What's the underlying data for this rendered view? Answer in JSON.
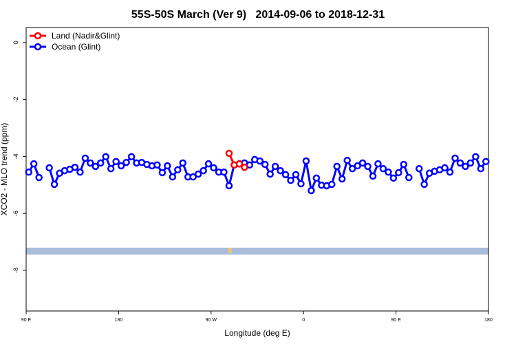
{
  "chart_data": {
    "type": "line",
    "title": "55S-50S March (Ver 9)   2014-09-06 to 2018-12-31",
    "x_label": "Longitude (deg E)",
    "y_label": "XCO2 - MLO trend (ppm)",
    "xlim": [
      90,
      540
    ],
    "ylim": [
      -9.43,
      0.53
    ],
    "xticks": [
      {
        "value": 90,
        "label": "90 E"
      },
      {
        "value": 180,
        "label": "180"
      },
      {
        "value": 270,
        "label": "90 W"
      },
      {
        "value": 360,
        "label": "0"
      },
      {
        "value": 450,
        "label": "90 E"
      },
      {
        "value": 540,
        "label": "180"
      }
    ],
    "yticks": [
      0,
      -2,
      -4,
      -6,
      -8
    ],
    "legend": "top-left",
    "series": [
      {
        "name": "Land (Nadir&Glint)",
        "color": "#ff0000",
        "x": [
          287.5,
          292.5,
          297.5,
          302.5
        ],
        "values": [
          -3.89,
          -4.3,
          -4.26,
          -4.38
        ]
      },
      {
        "name": "Ocean (Glint)",
        "color": "#0000ff",
        "x": [
          92.5,
          97.5,
          102.5,
          107.5,
          112.5,
          117.5,
          122.5,
          127.5,
          132.5,
          137.5,
          142.5,
          147.5,
          152.5,
          157.5,
          162.5,
          167.5,
          172.5,
          177.5,
          182.5,
          187.5,
          192.5,
          197.5,
          202.5,
          207.5,
          212.5,
          217.5,
          222.5,
          227.5,
          232.5,
          237.5,
          242.5,
          247.5,
          252.5,
          257.5,
          262.5,
          267.5,
          272.5,
          277.5,
          282.5,
          287.5,
          292.5,
          297.5,
          302.5,
          307.5,
          312.5,
          317.5,
          322.5,
          327.5,
          332.5,
          337.5,
          342.5,
          347.5,
          352.5,
          357.5,
          362.5,
          367.5,
          372.5,
          377.5,
          382.5,
          387.5,
          392.5,
          397.5,
          402.5,
          407.5,
          412.5,
          417.5,
          422.5,
          427.5,
          432.5,
          437.5,
          442.5,
          447.5,
          452.5,
          457.5,
          462.5,
          467.5,
          472.5,
          477.5,
          482.5,
          487.5,
          492.5,
          497.5,
          502.5,
          507.5,
          512.5,
          517.5,
          522.5,
          527.5,
          532.5,
          537.5
        ],
        "values": [
          -4.55,
          -4.26,
          -4.74,
          null,
          -4.4,
          -4.98,
          -4.59,
          -4.5,
          -4.45,
          -4.38,
          -4.55,
          -4.06,
          -4.23,
          -4.35,
          -4.23,
          -4.01,
          -4.43,
          -4.18,
          -4.33,
          -4.21,
          -4.01,
          -4.23,
          -4.21,
          -4.28,
          -4.33,
          -4.3,
          -4.57,
          -4.33,
          -4.72,
          -4.47,
          -4.23,
          -4.72,
          -4.72,
          -4.62,
          -4.5,
          -4.26,
          -4.4,
          -4.55,
          -4.55,
          -5.03,
          -4.3,
          -4.26,
          -4.23,
          -4.3,
          -4.11,
          -4.16,
          -4.28,
          -4.62,
          -4.35,
          -4.5,
          -4.64,
          -4.84,
          -4.64,
          -4.96,
          -4.16,
          -5.2,
          -4.76,
          -5.01,
          -5.03,
          -4.98,
          -4.35,
          -4.79,
          -4.14,
          -4.43,
          -4.33,
          -4.23,
          -4.35,
          -4.69,
          -4.26,
          -4.43,
          -4.55,
          -4.76,
          -4.57,
          -4.28,
          -4.74,
          null,
          -4.43,
          -4.98,
          -4.59,
          -4.52,
          -4.47,
          -4.4,
          -4.55,
          -4.06,
          -4.23,
          -4.35,
          -4.23,
          -4.01,
          -4.43,
          -4.18
        ]
      }
    ]
  }
}
